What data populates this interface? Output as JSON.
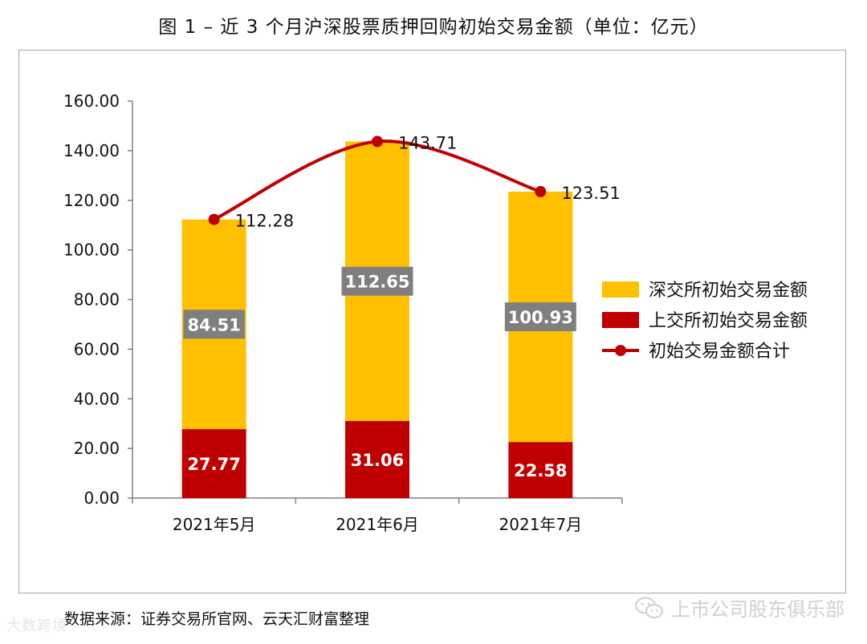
{
  "title": "图 1 – 近 3 个月沪深股票质押回购初始交易金额（单位：亿元）",
  "source_note": "数据来源：证券交易所官网、云天汇财富整理",
  "watermark_right": "上市公司股东俱乐部",
  "watermark_left": "大数跨境",
  "colors": {
    "szse": "#FFC000",
    "sse": "#C00000",
    "total_line": "#C00000",
    "label_box": "#7F7F7F",
    "axis": "#808080"
  },
  "chart_data": {
    "type": "bar",
    "stacked": true,
    "categories": [
      "2021年5月",
      "2021年6月",
      "2021年7月"
    ],
    "series": [
      {
        "name": "上交所初始交易金额",
        "values": [
          27.77,
          31.06,
          22.58
        ]
      },
      {
        "name": "深交所初始交易金额",
        "values": [
          84.51,
          112.65,
          100.93
        ]
      }
    ],
    "line_series": {
      "name": "初始交易金额合计",
      "values": [
        112.28,
        143.71,
        123.51
      ]
    },
    "ylim": [
      0,
      160
    ],
    "yticks": [
      "0.00",
      "20.00",
      "40.00",
      "60.00",
      "80.00",
      "100.00",
      "120.00",
      "140.00",
      "160.00"
    ],
    "legend_order": [
      "深交所初始交易金额",
      "上交所初始交易金额",
      "初始交易金额合计"
    ],
    "legend_position": "right",
    "grid": false
  }
}
